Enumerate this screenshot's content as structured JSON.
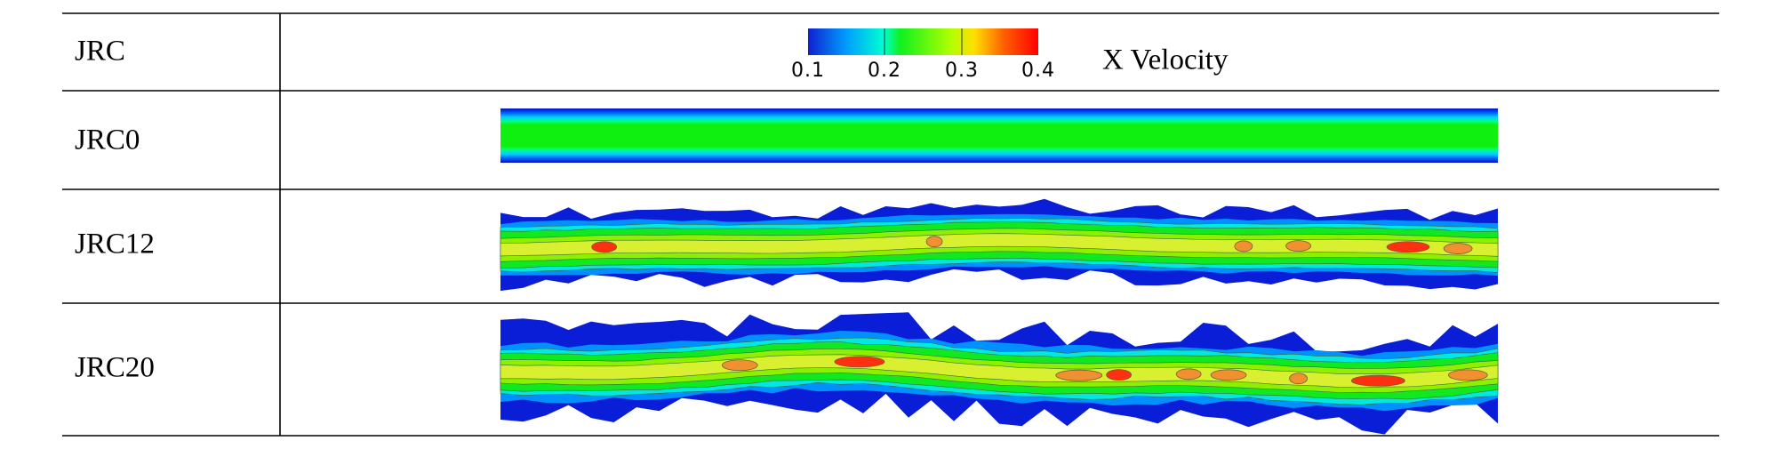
{
  "table": {
    "rows": [
      {
        "label": "JRC"
      },
      {
        "label": "JRC0"
      },
      {
        "label": "JRC12"
      },
      {
        "label": "JRC20"
      }
    ]
  },
  "colorbar": {
    "title": "X Velocity",
    "ticks": [
      "0.1",
      "0.2",
      "0.3",
      "0.4"
    ]
  }
}
